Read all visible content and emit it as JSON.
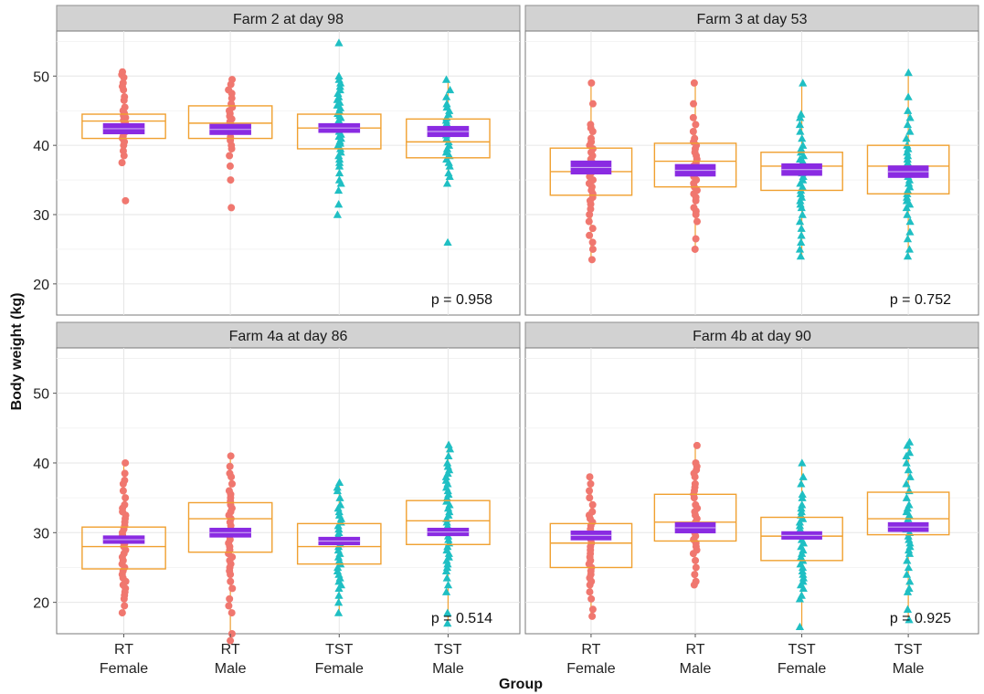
{
  "chart_data": {
    "type": "box-strip",
    "ylabel": "Body weight (kg)",
    "xlabel": "Group",
    "categories": [
      {
        "line1": "RT",
        "line2": "Female"
      },
      {
        "line1": "RT",
        "line2": "Male"
      },
      {
        "line1": "TST",
        "line2": "Female"
      },
      {
        "line1": "TST",
        "line2": "Male"
      }
    ],
    "y_ticks": [
      20,
      30,
      40,
      50
    ],
    "ylim": [
      15.5,
      56.5
    ],
    "colors": {
      "RT": "#F0776F",
      "TST": "#1FBFC3",
      "box": "#F0A030",
      "mean_ci": "#8A2BE2",
      "strip_bg": "#D2D2D2",
      "grid": "#E6E6E6"
    },
    "panels": [
      {
        "title": "Farm 2 at day 98",
        "p_value": "p = 0.958",
        "groups": [
          {
            "q1": 41.0,
            "median": 43.5,
            "q3": 44.5,
            "wmin": 38.5,
            "wmax": 48.5,
            "mean": 42.4,
            "ci_low": 41.6,
            "ci_high": 43.2,
            "points": [
              32,
              37.5,
              38.5,
              39.2,
              40,
              40.5,
              41,
              41.3,
              41.8,
              42,
              42.3,
              42.6,
              43,
              43.3,
              43.6,
              44,
              44.3,
              44.6,
              45,
              45.5,
              46.5,
              47,
              48,
              48.5,
              49,
              49.8,
              50.2,
              50.6
            ]
          },
          {
            "q1": 41.0,
            "median": 43.2,
            "q3": 45.7,
            "wmin": 38.5,
            "wmax": 48.5,
            "mean": 42.3,
            "ci_low": 41.5,
            "ci_high": 43.1,
            "points": [
              31,
              35,
              37,
              38.5,
              39.5,
              40,
              40.7,
              41.2,
              41.8,
              42.2,
              42.6,
              43,
              43.4,
              43.8,
              44.2,
              44.6,
              45,
              45.5,
              46,
              46.8,
              47.5,
              48,
              48.8,
              49.5
            ]
          },
          {
            "q1": 39.5,
            "median": 42.5,
            "q3": 44.5,
            "wmin": 35,
            "wmax": 50,
            "mean": 42.5,
            "ci_low": 41.8,
            "ci_high": 43.2,
            "points": [
              30,
              31.5,
              33.5,
              34.5,
              35,
              36,
              37,
              37.5,
              38,
              38.5,
              39,
              39.5,
              40,
              40.3,
              40.6,
              41,
              41.3,
              41.6,
              42,
              42.3,
              42.6,
              43,
              43.3,
              43.6,
              44,
              44.3,
              44.6,
              45,
              45.4,
              45.8,
              46.2,
              46.6,
              47,
              47.5,
              48,
              48.5,
              49,
              49.5,
              50,
              54.8
            ]
          },
          {
            "q1": 38.2,
            "median": 40.5,
            "q3": 43.8,
            "wmin": 35,
            "wmax": 49.5,
            "mean": 42.0,
            "ci_low": 41.2,
            "ci_high": 42.8,
            "points": [
              26,
              34.5,
              35.5,
              36,
              37,
              37.5,
              38,
              38.5,
              39,
              39.5,
              40,
              40.5,
              41,
              41.5,
              42,
              42.4,
              42.8,
              43.2,
              43.6,
              44,
              44.5,
              45,
              45.5,
              46,
              47,
              48,
              49.5
            ]
          }
        ]
      },
      {
        "title": "Farm 3 at day 53",
        "p_value": "p = 0.752",
        "groups": [
          {
            "q1": 32.8,
            "median": 36.2,
            "q3": 39.6,
            "wmin": 23.5,
            "wmax": 49,
            "mean": 36.8,
            "ci_low": 35.8,
            "ci_high": 37.8,
            "points": [
              23.5,
              25,
              26,
              27,
              28,
              29,
              30,
              30.8,
              31.5,
              32,
              32.5,
              33,
              33.5,
              34,
              34.5,
              35,
              35.5,
              36,
              36.4,
              36.8,
              37.2,
              37.6,
              38,
              38.5,
              39,
              39.5,
              40,
              40.5,
              41,
              42,
              42.5,
              43,
              46,
              49
            ]
          },
          {
            "q1": 34.0,
            "median": 37.7,
            "q3": 40.3,
            "wmin": 25,
            "wmax": 49,
            "mean": 36.4,
            "ci_low": 35.5,
            "ci_high": 37.3,
            "points": [
              25,
              26.5,
              29,
              30,
              30.5,
              31,
              32,
              32.5,
              33,
              33.5,
              34,
              34.5,
              35,
              35.5,
              36,
              36.5,
              37,
              37.5,
              38,
              38.5,
              39,
              39.5,
              40,
              40.5,
              41,
              42,
              43,
              44,
              46,
              49
            ]
          },
          {
            "q1": 33.5,
            "median": 37.0,
            "q3": 39.0,
            "wmin": 24,
            "wmax": 49,
            "mean": 36.5,
            "ci_low": 35.6,
            "ci_high": 37.4,
            "points": [
              24,
              25,
              26,
              27,
              28,
              29,
              30,
              31,
              31.5,
              32,
              32.5,
              33,
              33.5,
              34,
              34.5,
              35,
              35.5,
              36,
              36.4,
              36.8,
              37.2,
              37.6,
              38,
              38.5,
              39,
              39.5,
              40,
              41,
              42,
              43,
              44,
              44.5,
              49
            ]
          },
          {
            "q1": 33.0,
            "median": 37.0,
            "q3": 40.0,
            "wmin": 24,
            "wmax": 50.5,
            "mean": 36.2,
            "ci_low": 35.3,
            "ci_high": 37.1,
            "points": [
              24,
              25,
              26.5,
              27.5,
              29,
              30,
              31,
              31.5,
              32,
              32.5,
              33,
              33.5,
              34,
              34.5,
              35,
              35.5,
              36,
              36.5,
              37,
              37.5,
              38,
              38.5,
              39,
              39.5,
              40,
              41,
              42,
              43,
              44,
              45,
              47,
              50.5
            ]
          }
        ]
      },
      {
        "title": "Farm 4a at day 86",
        "p_value": "p = 0.514",
        "groups": [
          {
            "q1": 24.8,
            "median": 28.0,
            "q3": 30.8,
            "wmin": 18.5,
            "wmax": 40,
            "mean": 29.0,
            "ci_low": 28.4,
            "ci_high": 29.6,
            "points": [
              18.5,
              19.5,
              20.5,
              21,
              21.5,
              22,
              22.5,
              23,
              23.5,
              24,
              24.5,
              25,
              25.5,
              26,
              26.5,
              27,
              27.5,
              28,
              28.4,
              28.8,
              29.2,
              29.6,
              30,
              30.5,
              31,
              31.5,
              32,
              32.5,
              33,
              33.5,
              34,
              35,
              36,
              37,
              37.5,
              38.5,
              40
            ]
          },
          {
            "q1": 27.2,
            "median": 32.0,
            "q3": 34.3,
            "wmin": 14.5,
            "wmax": 41,
            "mean": 30.0,
            "ci_low": 29.3,
            "ci_high": 30.7,
            "points": [
              14.5,
              15.5,
              18.5,
              19.5,
              20.5,
              22,
              23,
              24,
              24.5,
              25,
              25.5,
              26,
              26.5,
              27,
              27.5,
              28,
              28.5,
              29,
              29.5,
              30,
              30.5,
              31,
              31.5,
              32,
              32.5,
              33,
              33.5,
              34,
              34.5,
              35,
              35.5,
              36,
              37,
              38,
              38.5,
              39.5,
              41
            ]
          },
          {
            "q1": 25.5,
            "median": 28.0,
            "q3": 31.3,
            "wmin": 18.5,
            "wmax": 37.2,
            "mean": 28.8,
            "ci_low": 28.2,
            "ci_high": 29.4,
            "points": [
              18.5,
              20,
              21,
              22,
              22.5,
              23,
              23.5,
              24,
              24.5,
              25,
              25.5,
              26,
              26.5,
              27,
              27.5,
              28,
              28.4,
              28.8,
              29.2,
              29.6,
              30,
              30.5,
              31,
              31.5,
              32,
              32.5,
              33,
              33.5,
              34,
              35,
              36,
              36.5,
              37.2
            ]
          },
          {
            "q1": 28.3,
            "median": 31.7,
            "q3": 34.6,
            "wmin": 17,
            "wmax": 43,
            "mean": 30.1,
            "ci_low": 29.5,
            "ci_high": 30.7,
            "points": [
              17,
              18.5,
              21.5,
              22.5,
              23.5,
              24.5,
              25,
              25.5,
              26,
              26.5,
              27,
              27.5,
              28,
              28.5,
              29,
              29.5,
              30,
              30.5,
              31,
              31.5,
              32,
              32.5,
              33,
              33.5,
              34,
              34.5,
              35,
              35.5,
              36,
              36.5,
              37,
              37.5,
              38,
              38.5,
              39,
              39.5,
              40,
              41,
              42,
              42.6
            ]
          }
        ]
      },
      {
        "title": "Farm 4b at day 90",
        "p_value": "p = 0.925",
        "groups": [
          {
            "q1": 25.0,
            "median": 28.5,
            "q3": 31.3,
            "wmin": 18,
            "wmax": 38,
            "mean": 29.6,
            "ci_low": 28.9,
            "ci_high": 30.3,
            "points": [
              18,
              19,
              20.5,
              21.5,
              22.5,
              23,
              23.5,
              24,
              24.5,
              25,
              25.5,
              26,
              26.5,
              27,
              27.5,
              28,
              28.5,
              29,
              29.5,
              30,
              30.5,
              31,
              31.5,
              32,
              32.5,
              33,
              34,
              35,
              36,
              37,
              38
            ]
          },
          {
            "q1": 28.8,
            "median": 31.5,
            "q3": 35.5,
            "wmin": 22.5,
            "wmax": 42.5,
            "mean": 30.7,
            "ci_low": 29.9,
            "ci_high": 31.5,
            "points": [
              22.5,
              23,
              24,
              25,
              26,
              27,
              27.5,
              28,
              28.5,
              29,
              29.5,
              30,
              30.5,
              31,
              31.5,
              32,
              32.5,
              33,
              33.5,
              34,
              35,
              35.5,
              36,
              36.5,
              37,
              38,
              38.5,
              39,
              39.5,
              40,
              42.5
            ]
          },
          {
            "q1": 26.0,
            "median": 29.5,
            "q3": 32.2,
            "wmin": 16.5,
            "wmax": 40,
            "mean": 29.6,
            "ci_low": 29.0,
            "ci_high": 30.2,
            "points": [
              16.5,
              20.5,
              21,
              22,
              22.5,
              23,
              23.5,
              24,
              24.5,
              25,
              25.5,
              26,
              26.5,
              27,
              27.5,
              28,
              28.5,
              29,
              29.5,
              30,
              30.5,
              31,
              31.5,
              32,
              32.5,
              33,
              33.5,
              34,
              35,
              35.5,
              37,
              38,
              40
            ]
          },
          {
            "q1": 29.7,
            "median": 32.0,
            "q3": 35.8,
            "wmin": 17.5,
            "wmax": 43,
            "mean": 30.8,
            "ci_low": 30.1,
            "ci_high": 31.5,
            "points": [
              17.5,
              19,
              21.5,
              22,
              23,
              24,
              25,
              26,
              27,
              27.5,
              28,
              28.5,
              29,
              29.5,
              30,
              30.5,
              31,
              31.5,
              32,
              32.5,
              33,
              33.5,
              34,
              35,
              36,
              37,
              38,
              39,
              40,
              41,
              41.5,
              42.5,
              43
            ]
          }
        ]
      }
    ]
  }
}
